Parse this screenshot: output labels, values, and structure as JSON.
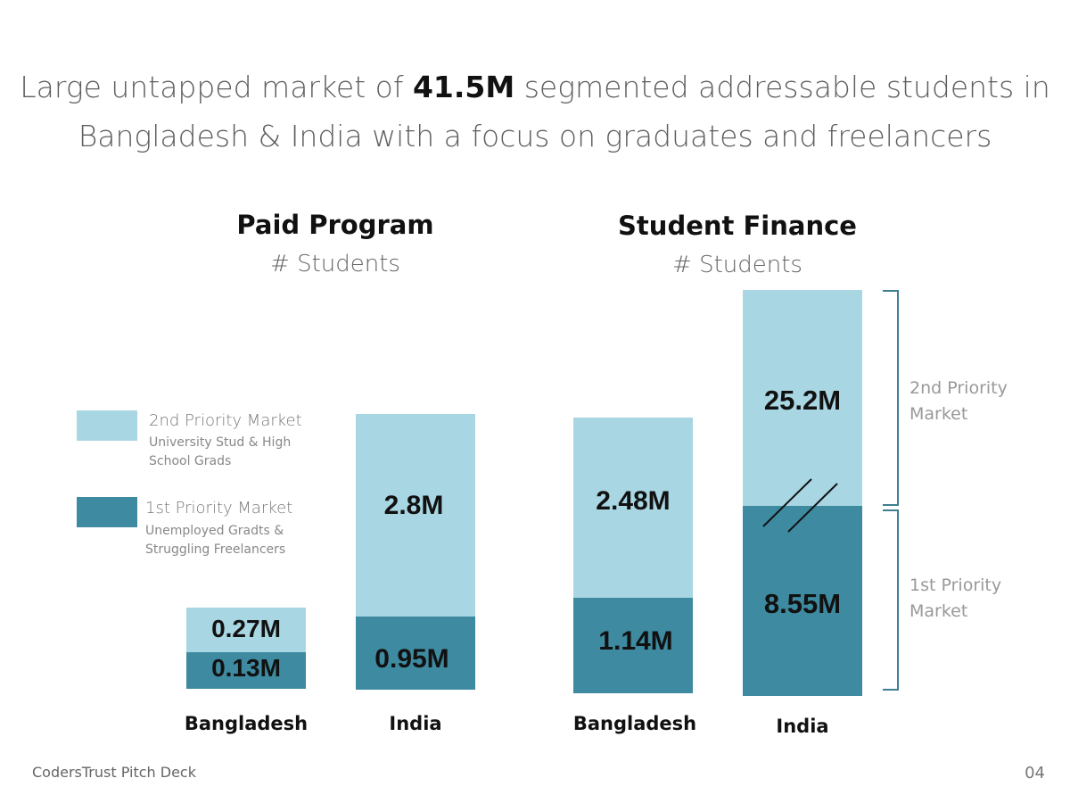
{
  "headline": {
    "line1_pre": "Large untapped market of ",
    "line1_bold": "41.5M",
    "line1_post": " segmented addressable students in",
    "line2": "Bangladesh & India with a focus on graduates and freelancers"
  },
  "colors": {
    "first_priority": "#3e8aa0",
    "second_priority": "#a8d6e3",
    "bracket": "#3f7f93"
  },
  "legend": {
    "second": {
      "title": "2nd Priority Market",
      "desc": "University Stud & High School Grads"
    },
    "first": {
      "title": "1st Priority Market",
      "desc": "Unemployed Gradts & Struggling Freelancers"
    }
  },
  "brackets": {
    "second": "2nd Priority Market",
    "first": "1st Priority Market"
  },
  "chart_data": [
    {
      "type": "bar",
      "stacked": true,
      "title": "Paid Program",
      "subtitle": "# Students",
      "categories": [
        "Bangladesh",
        "India"
      ],
      "series": [
        {
          "name": "1st Priority Market",
          "values": [
            0.13,
            0.95
          ],
          "labels": [
            "0.13M",
            "0.95M"
          ]
        },
        {
          "name": "2nd Priority Market",
          "values": [
            0.27,
            2.8
          ],
          "labels": [
            "0.27M",
            "2.8M"
          ]
        }
      ]
    },
    {
      "type": "bar",
      "stacked": true,
      "title": "Student Finance",
      "subtitle": "# Students",
      "categories": [
        "Bangladesh",
        "India"
      ],
      "axis_break": true,
      "series": [
        {
          "name": "1st Priority Market",
          "values": [
            1.14,
            8.55
          ],
          "labels": [
            "1.14M",
            "8.55M"
          ]
        },
        {
          "name": "2nd Priority Market",
          "values": [
            2.48,
            25.2
          ],
          "labels": [
            "2.48M",
            "25.2M"
          ]
        }
      ]
    }
  ],
  "footer": {
    "deck": "CodersTrust Pitch Deck",
    "page": "04"
  }
}
